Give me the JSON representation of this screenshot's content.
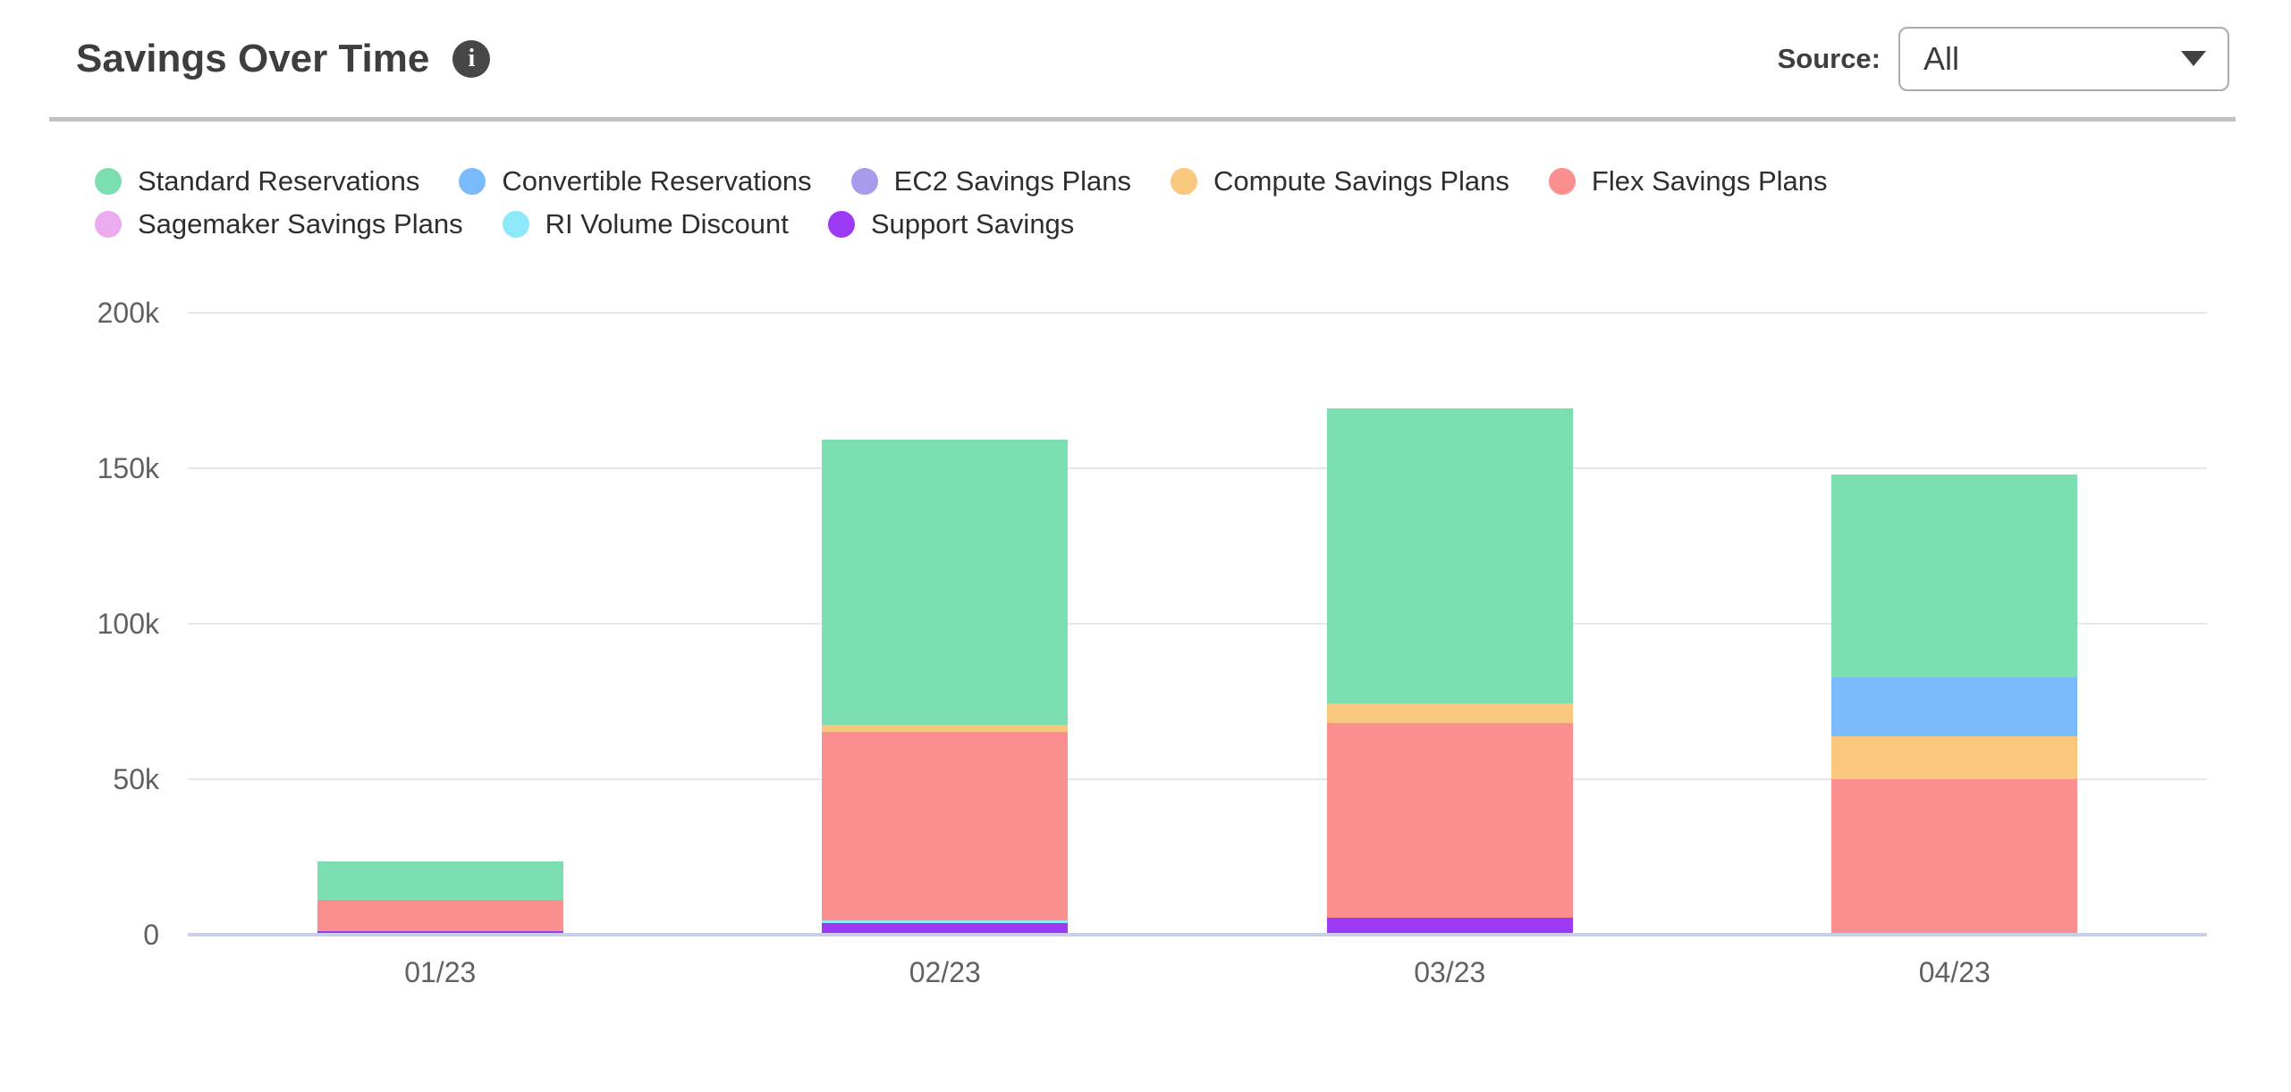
{
  "header": {
    "title": "Savings Over Time",
    "info_icon_glyph": "i",
    "source_label": "Source:",
    "source_value": "All",
    "caret_icon": "chevron-down-icon"
  },
  "colors": {
    "title_text": "#3e3e3e",
    "axis_text": "#616161",
    "legend_text": "#2e2e2e",
    "gridline": "#e8e8e8",
    "zero_line": "#c9cee9",
    "divider": "#c2c2c2",
    "info_badge_bg": "#474747",
    "dropdown_border": "#ababab"
  },
  "legend": {
    "rows": [
      [
        0,
        1,
        2,
        3,
        4
      ],
      [
        5,
        6,
        7
      ]
    ]
  },
  "chart_data": {
    "type": "bar",
    "stacked": true,
    "title": "Savings Over Time",
    "xlabel": "",
    "ylabel": "",
    "grid": true,
    "legend_position": "top",
    "categories": [
      "01/23",
      "02/23",
      "03/23",
      "04/23"
    ],
    "series": [
      {
        "name": "Standard Reservations",
        "color": "#7bdfb2",
        "values": [
          12400,
          91800,
          94700,
          65000
        ]
      },
      {
        "name": "Convertible Reservations",
        "color": "#79bafa",
        "values": [
          0,
          0,
          0,
          19000
        ]
      },
      {
        "name": "EC2 Savings Plans",
        "color": "#a89bec",
        "values": [
          0,
          0,
          0,
          0
        ]
      },
      {
        "name": "Compute Savings Plans",
        "color": "#f9c77e",
        "values": [
          0,
          2400,
          6500,
          13800
        ]
      },
      {
        "name": "Flex Savings Plans",
        "color": "#fb8e8e",
        "values": [
          10000,
          60400,
          62500,
          50100
        ]
      },
      {
        "name": "Sagemaker Savings Plans",
        "color": "#ecaaef",
        "values": [
          0,
          0,
          0,
          0
        ]
      },
      {
        "name": "RI Volume Discount",
        "color": "#8de8fa",
        "values": [
          0,
          1000,
          0,
          0
        ]
      },
      {
        "name": "Support Savings",
        "color": "#9c3af6",
        "values": [
          1200,
          3700,
          5500,
          0
        ]
      }
    ],
    "stack_order_bottom_to_top": [
      "Support Savings",
      "RI Volume Discount",
      "Sagemaker Savings Plans",
      "Flex Savings Plans",
      "Compute Savings Plans",
      "EC2 Savings Plans",
      "Convertible Reservations",
      "Standard Reservations"
    ],
    "totals": [
      23600,
      159300,
      169200,
      147900
    ],
    "ylim": [
      0,
      200000
    ],
    "yticks": [
      {
        "value": 0,
        "label": "0"
      },
      {
        "value": 50000,
        "label": "50k"
      },
      {
        "value": 100000,
        "label": "100k"
      },
      {
        "value": 150000,
        "label": "150k"
      },
      {
        "value": 200000,
        "label": "200k"
      }
    ]
  }
}
